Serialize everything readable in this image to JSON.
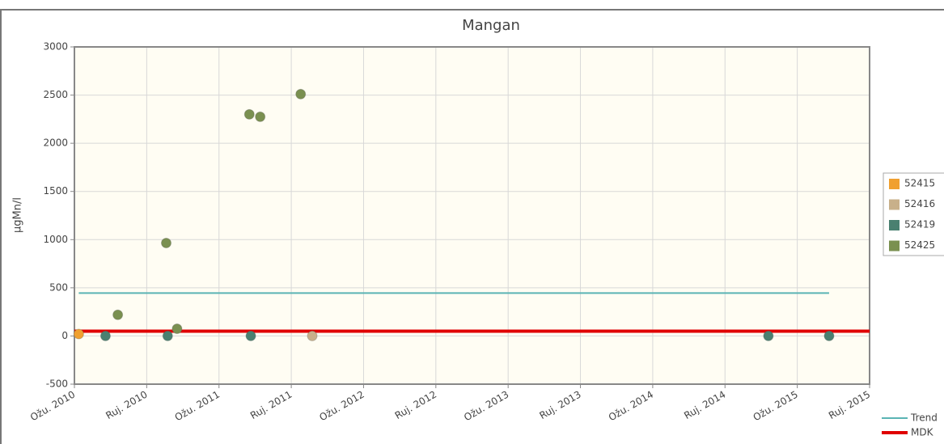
{
  "chart_data": {
    "type": "scatter",
    "title": "Mangan",
    "y_label": "µgMn/l",
    "xlim": [
      0,
      11
    ],
    "xticks": [
      {
        "value": 0,
        "label": "Ožu. 2010"
      },
      {
        "value": 1,
        "label": "Ruj. 2010"
      },
      {
        "value": 2,
        "label": "Ožu. 2011"
      },
      {
        "value": 3,
        "label": "Ruj. 2011"
      },
      {
        "value": 4,
        "label": "Ožu. 2012"
      },
      {
        "value": 5,
        "label": "Ruj. 2012"
      },
      {
        "value": 6,
        "label": "Ožu. 2013"
      },
      {
        "value": 7,
        "label": "Ruj. 2013"
      },
      {
        "value": 8,
        "label": "Ožu. 2014"
      },
      {
        "value": 9,
        "label": "Ruj. 2014"
      },
      {
        "value": 10,
        "label": "Ožu. 2015"
      },
      {
        "value": 11,
        "label": "Ruj. 2015"
      }
    ],
    "ylim": [
      -500,
      3000
    ],
    "yticks": [
      -500,
      0,
      500,
      1000,
      1500,
      2000,
      2500,
      3000
    ],
    "grid": true,
    "series": [
      {
        "name": "52415",
        "color": "#f0a030",
        "x": [
          0.06
        ],
        "values": [
          20
        ]
      },
      {
        "name": "52416",
        "color": "#c8b08a",
        "x": [
          3.29
        ],
        "values": [
          0
        ]
      },
      {
        "name": "52419",
        "color": "#4a8070",
        "x": [
          0.43,
          1.29,
          2.44,
          9.6,
          10.44
        ],
        "values": [
          0,
          0,
          0,
          0,
          0
        ]
      },
      {
        "name": "52425",
        "color": "#7a9050",
        "x": [
          0.6,
          1.27,
          1.42,
          2.42,
          2.57,
          3.13
        ],
        "values": [
          220,
          965,
          75,
          2300,
          2275,
          2510
        ]
      }
    ],
    "lines": [
      {
        "name": "Trend",
        "color": "#5ab4b4",
        "x": [
          0.06,
          10.44
        ],
        "values": [
          445,
          445
        ]
      },
      {
        "name": "MDK",
        "color": "#e00000",
        "x": [
          0,
          11
        ],
        "values": [
          50,
          50
        ]
      }
    ]
  }
}
